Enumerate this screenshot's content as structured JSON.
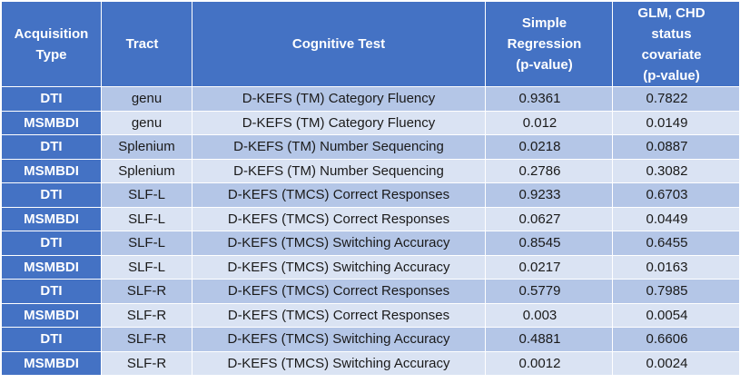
{
  "headers": {
    "acquisition": [
      "Acquisition",
      "Type"
    ],
    "tract": [
      "Tract"
    ],
    "test": [
      "Cognitive Test"
    ],
    "simple": [
      "Simple",
      "Regression",
      "(p-value)"
    ],
    "glm": [
      "GLM, CHD",
      "status",
      "covariate",
      "(p-value)"
    ]
  },
  "rows": [
    {
      "acq": "DTI",
      "tract": "genu",
      "test": "D-KEFS (TM) Category Fluency",
      "simple": "0.9361",
      "glm": "0.7822"
    },
    {
      "acq": "MSMBDI",
      "tract": "genu",
      "test": "D-KEFS (TM) Category Fluency",
      "simple": "0.012",
      "glm": "0.0149"
    },
    {
      "acq": "DTI",
      "tract": "Splenium",
      "test": "D-KEFS (TM) Number Sequencing",
      "simple": "0.0218",
      "glm": "0.0887"
    },
    {
      "acq": "MSMBDI",
      "tract": "Splenium",
      "test": "D-KEFS (TM) Number Sequencing",
      "simple": "0.2786",
      "glm": "0.3082"
    },
    {
      "acq": "DTI",
      "tract": "SLF-L",
      "test": "D-KEFS (TMCS) Correct Responses",
      "simple": "0.9233",
      "glm": "0.6703"
    },
    {
      "acq": "MSMBDI",
      "tract": "SLF-L",
      "test": "D-KEFS (TMCS) Correct Responses",
      "simple": "0.0627",
      "glm": "0.0449"
    },
    {
      "acq": "DTI",
      "tract": "SLF-L",
      "test": "D-KEFS (TMCS) Switching Accuracy",
      "simple": "0.8545",
      "glm": "0.6455"
    },
    {
      "acq": "MSMBDI",
      "tract": "SLF-L",
      "test": "D-KEFS (TMCS) Switching Accuracy",
      "simple": "0.0217",
      "glm": "0.0163"
    },
    {
      "acq": "DTI",
      "tract": "SLF-R",
      "test": "D-KEFS (TMCS) Correct Responses",
      "simple": "0.5779",
      "glm": "0.7985"
    },
    {
      "acq": "MSMBDI",
      "tract": "SLF-R",
      "test": "D-KEFS (TMCS) Correct Responses",
      "simple": "0.003",
      "glm": "0.0054"
    },
    {
      "acq": "DTI",
      "tract": "SLF-R",
      "test": "D-KEFS (TMCS) Switching Accuracy",
      "simple": "0.4881",
      "glm": "0.6606"
    },
    {
      "acq": "MSMBDI",
      "tract": "SLF-R",
      "test": "D-KEFS (TMCS) Switching Accuracy",
      "simple": "0.0012",
      "glm": "0.0024"
    }
  ],
  "colors": {
    "header_bg": "#4472c4",
    "row_dark": "#b4c6e7",
    "row_light": "#dae3f3",
    "header_text": "#ffffff"
  }
}
